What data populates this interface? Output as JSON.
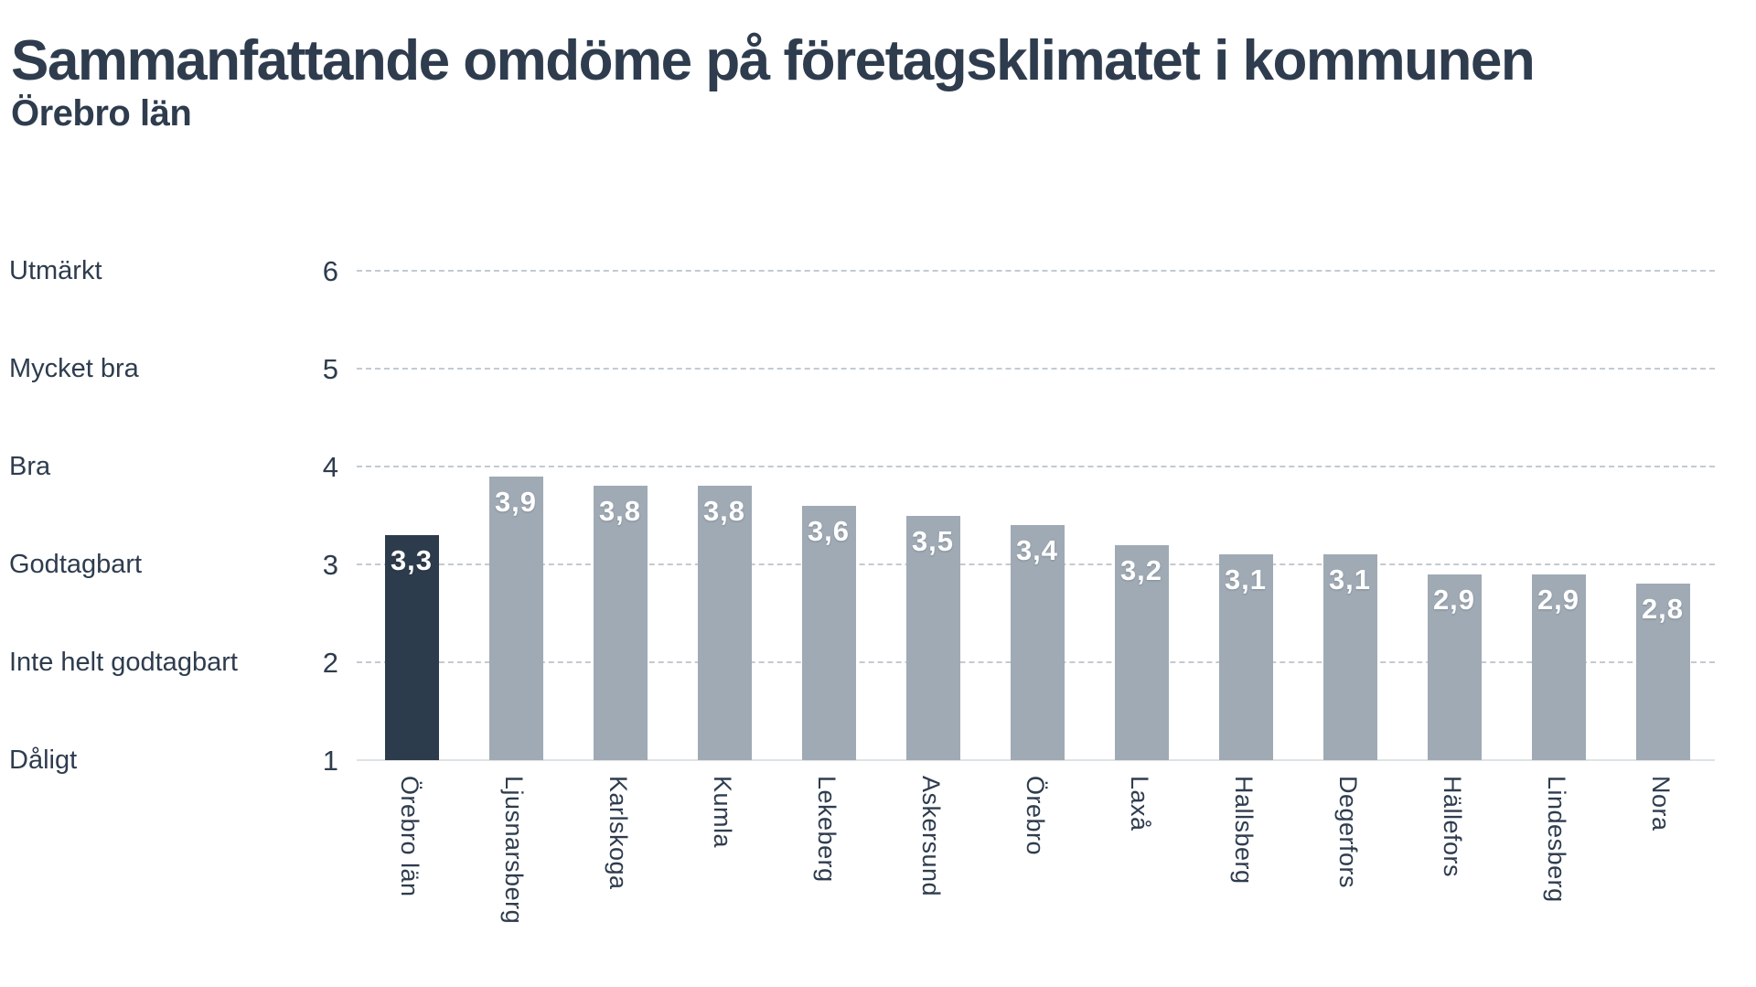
{
  "title": "Sammanfattande omdöme på företagsklimatet i kommunen",
  "subtitle": "Örebro län",
  "chart_data": {
    "type": "bar",
    "categories": [
      "Örebro län",
      "Ljusnarsberg",
      "Karlskoga",
      "Kumla",
      "Lekeberg",
      "Askersund",
      "Örebro",
      "Laxå",
      "Hallsberg",
      "Degerfors",
      "Hällefors",
      "Lindesberg",
      "Nora"
    ],
    "values": [
      3.3,
      3.9,
      3.8,
      3.8,
      3.6,
      3.5,
      3.4,
      3.2,
      3.1,
      3.1,
      2.9,
      2.9,
      2.8
    ],
    "value_labels": [
      "3,3",
      "3,9",
      "3,8",
      "3,8",
      "3,6",
      "3,5",
      "3,4",
      "3,2",
      "3,1",
      "3,1",
      "2,9",
      "2,9",
      "2,8"
    ],
    "highlight_index": 0,
    "title": "Sammanfattande omdöme på företagsklimatet i kommunen",
    "subtitle": "Örebro län",
    "xlabel": "",
    "ylabel": "",
    "ylim": [
      1,
      6
    ],
    "grid": "horizontal-dashed",
    "legend": "none",
    "y_axis": {
      "ticks": [
        "6",
        "5",
        "4",
        "3",
        "2",
        "1"
      ],
      "tick_values": [
        6,
        5,
        4,
        3,
        2,
        1
      ],
      "tick_names": [
        "Utmärkt",
        "Mycket bra",
        "Bra",
        "Godtagbart",
        "Inte helt godtagbart",
        "Dåligt"
      ]
    },
    "colors": {
      "highlight_bar": "#2d3c4d",
      "default_bar": "#9faab5",
      "text": "#2e3c4e",
      "gridline": "#c3cad1",
      "baseline": "#dfe3e6",
      "value_label": "#ffffff"
    }
  }
}
